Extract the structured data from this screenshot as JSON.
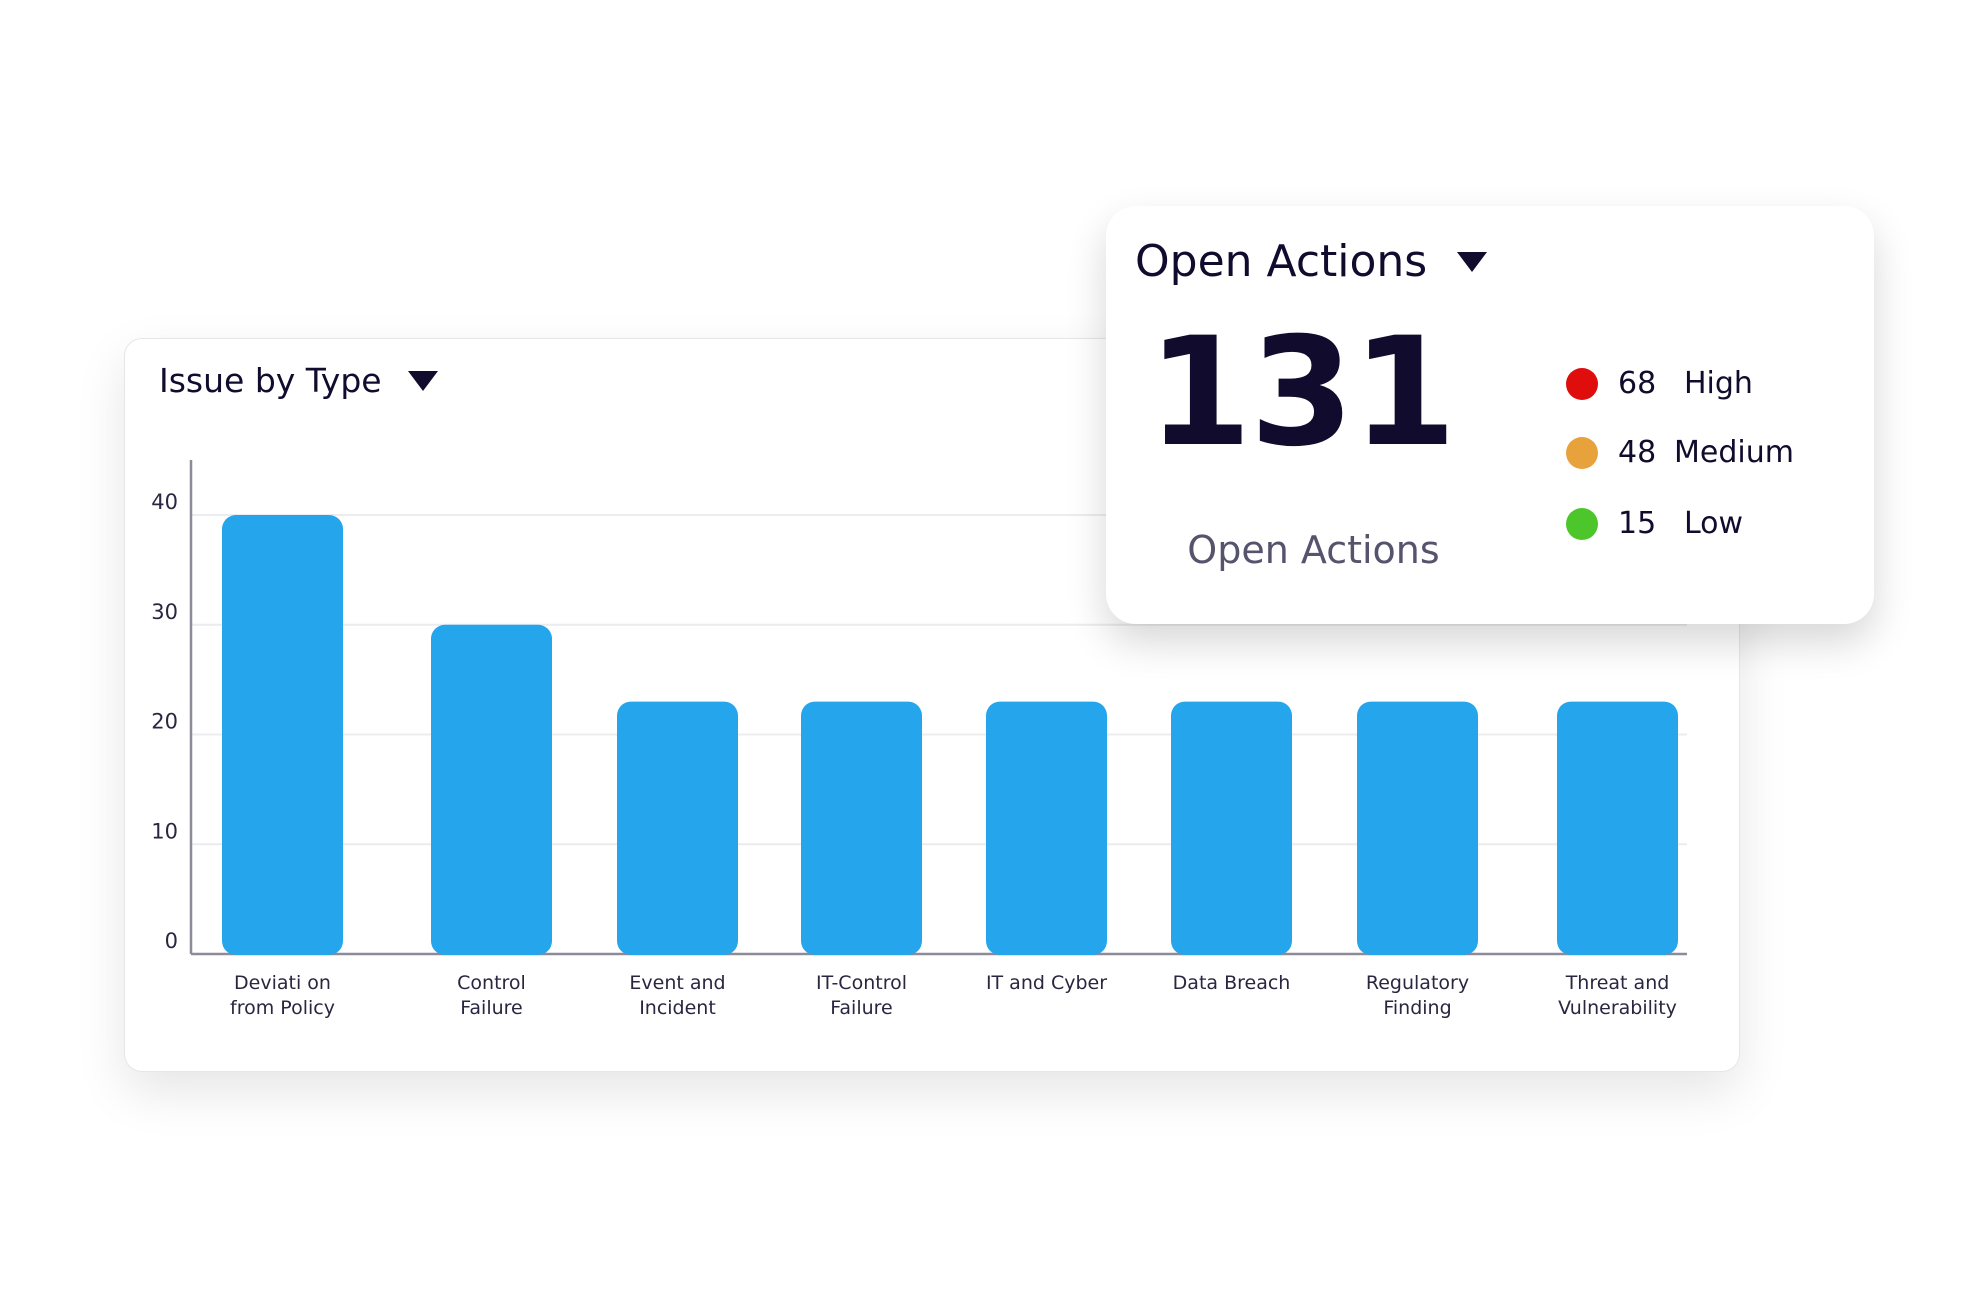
{
  "issue_card": {
    "title": "Issue by Type",
    "dropdown_icon": "caret-down-icon"
  },
  "actions_card": {
    "title": "Open Actions",
    "dropdown_icon": "caret-down-icon",
    "total": "131",
    "total_label": "Open Actions",
    "legend": [
      {
        "count": "68",
        "label": "High",
        "color": "#e00d0d"
      },
      {
        "count": "48",
        "label": "Medium",
        "color": "#e8a23c"
      },
      {
        "count": "15",
        "label": "Low",
        "color": "#4cc62a"
      }
    ]
  },
  "chart_data": {
    "type": "bar",
    "title": "Issue by Type",
    "categories": [
      [
        "Deviati on",
        "from Policy"
      ],
      [
        "Control",
        "Failure"
      ],
      [
        "Event and",
        "Incident"
      ],
      [
        "IT-Control",
        "Failure"
      ],
      [
        "IT and Cyber"
      ],
      [
        "Data Breach"
      ],
      [
        "Regulatory",
        "Finding"
      ],
      [
        "Threat and",
        "Vulnerability"
      ]
    ],
    "values": [
      40,
      30,
      23,
      23,
      23,
      23,
      23,
      23
    ],
    "yticks": [
      0,
      10,
      20,
      30,
      40
    ],
    "ylim": [
      0,
      40
    ],
    "xlabel": "",
    "ylabel": "",
    "grid": true,
    "bar_color": "#25a6ec"
  }
}
